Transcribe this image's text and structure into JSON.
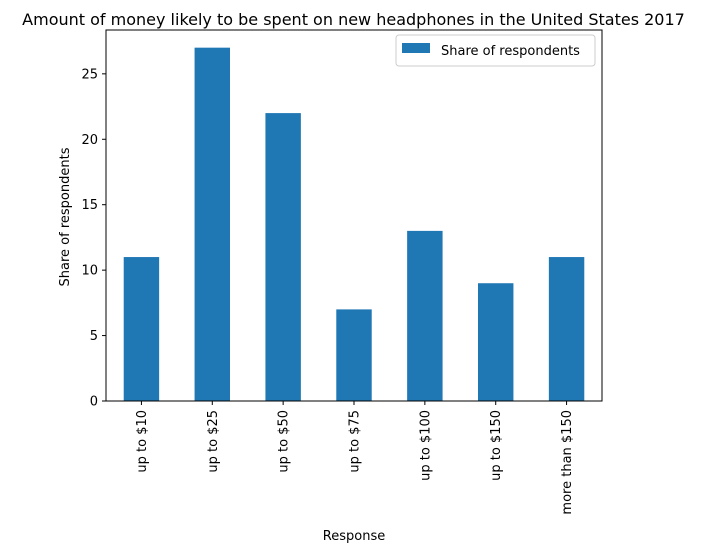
{
  "chart_data": {
    "type": "bar",
    "title": "Amount of money likely to be spent on new headphones in the United States 2017",
    "xlabel": "Response",
    "ylabel": "Share of respondents",
    "categories": [
      "up to $10",
      "up to $25",
      "up to $50",
      "up to $75",
      "up to $100",
      "up to $150",
      "more than $150"
    ],
    "series": [
      {
        "name": "Share of respondents",
        "values": [
          11,
          27,
          22,
          7,
          13,
          9,
          11
        ]
      }
    ],
    "ylim": [
      0,
      28.35
    ],
    "yticks": [
      0,
      5,
      10,
      15,
      20,
      25
    ],
    "grid": false,
    "legend_position": "top-right",
    "colors": {
      "bar": "#1f77b4"
    }
  }
}
